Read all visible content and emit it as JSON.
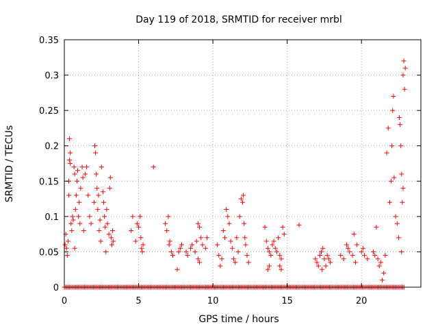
{
  "chart_data": {
    "type": "scatter",
    "title": "Day 119 of 2018, SRMTID for receiver mrbl",
    "xlabel": "GPS time / hours",
    "ylabel": "SRMTID / TECUs",
    "xlim": [
      0,
      24
    ],
    "ylim": [
      0,
      0.35
    ],
    "xticks": [
      0,
      5,
      10,
      15,
      20
    ],
    "xtick_labels": [
      "0",
      "5",
      "10",
      "15",
      "20"
    ],
    "yticks": [
      0,
      0.05,
      0.1,
      0.15,
      0.2,
      0.25,
      0.3,
      0.35
    ],
    "ytick_labels": [
      "0",
      "0.05",
      "0.1",
      "0.15",
      "0.2",
      "0.25",
      "0.3",
      "0.35"
    ],
    "grid": true,
    "marker": "+",
    "color": "#ff0000",
    "series": [
      {
        "name": "SRMTID",
        "points": [
          [
            0.05,
            0.06
          ],
          [
            0.1,
            0.075
          ],
          [
            0.15,
            0.055
          ],
          [
            0.2,
            0.045
          ],
          [
            0.25,
            0.065
          ],
          [
            0.3,
            0.13
          ],
          [
            0.3,
            0.15
          ],
          [
            0.35,
            0.21
          ],
          [
            0.35,
            0.18
          ],
          [
            0.4,
            0.175
          ],
          [
            0.4,
            0.19
          ],
          [
            0.45,
            0.09
          ],
          [
            0.5,
            0.08
          ],
          [
            0.55,
            0.1
          ],
          [
            0.6,
            0.095
          ],
          [
            0.65,
            0.17
          ],
          [
            0.7,
            0.16
          ],
          [
            0.7,
            0.055
          ],
          [
            0.75,
            0.11
          ],
          [
            0.8,
            0.13
          ],
          [
            0.85,
            0.15
          ],
          [
            0.9,
            0.165
          ],
          [
            0.95,
            0.1
          ],
          [
            1.0,
            0.12
          ],
          [
            1.05,
            0.09
          ],
          [
            1.1,
            0.14
          ],
          [
            1.2,
            0.17
          ],
          [
            1.25,
            0.155
          ],
          [
            1.3,
            0.08
          ],
          [
            1.4,
            0.16
          ],
          [
            1.5,
            0.17
          ],
          [
            1.6,
            0.13
          ],
          [
            1.7,
            0.1
          ],
          [
            1.8,
            0.09
          ],
          [
            2.0,
            0.12
          ],
          [
            2.05,
            0.2
          ],
          [
            2.1,
            0.19
          ],
          [
            2.15,
            0.16
          ],
          [
            2.2,
            0.14
          ],
          [
            2.25,
            0.11
          ],
          [
            2.3,
            0.13
          ],
          [
            2.35,
            0.08
          ],
          [
            2.4,
            0.095
          ],
          [
            2.45,
            0.065
          ],
          [
            2.5,
            0.17
          ],
          [
            2.6,
            0.135
          ],
          [
            2.65,
            0.12
          ],
          [
            2.7,
            0.1
          ],
          [
            2.75,
            0.085
          ],
          [
            2.8,
            0.05
          ],
          [
            2.85,
            0.11
          ],
          [
            2.9,
            0.09
          ],
          [
            3.0,
            0.075
          ],
          [
            3.05,
            0.14
          ],
          [
            3.1,
            0.155
          ],
          [
            3.15,
            0.07
          ],
          [
            3.2,
            0.06
          ],
          [
            3.25,
            0.08
          ],
          [
            3.3,
            0.065
          ],
          [
            4.5,
            0.08
          ],
          [
            4.6,
            0.1
          ],
          [
            4.8,
            0.065
          ],
          [
            4.9,
            0.09
          ],
          [
            5.0,
            0.085
          ],
          [
            5.1,
            0.1
          ],
          [
            5.15,
            0.07
          ],
          [
            5.2,
            0.055
          ],
          [
            5.25,
            0.05
          ],
          [
            5.3,
            0.06
          ],
          [
            6.0,
            0.17
          ],
          [
            6.8,
            0.09
          ],
          [
            6.9,
            0.08
          ],
          [
            7.0,
            0.1
          ],
          [
            7.05,
            0.06
          ],
          [
            7.1,
            0.065
          ],
          [
            7.2,
            0.05
          ],
          [
            7.3,
            0.045
          ],
          [
            7.6,
            0.025
          ],
          [
            7.7,
            0.05
          ],
          [
            7.8,
            0.055
          ],
          [
            7.9,
            0.06
          ],
          [
            8.2,
            0.05
          ],
          [
            8.3,
            0.045
          ],
          [
            8.5,
            0.055
          ],
          [
            8.6,
            0.06
          ],
          [
            8.8,
            0.05
          ],
          [
            8.9,
            0.065
          ],
          [
            9.0,
            0.09
          ],
          [
            9.1,
            0.085
          ],
          [
            9.2,
            0.07
          ],
          [
            9.3,
            0.06
          ],
          [
            9.0,
            0.04
          ],
          [
            9.1,
            0.035
          ],
          [
            9.5,
            0.055
          ],
          [
            9.6,
            0.07
          ],
          [
            10.3,
            0.06
          ],
          [
            10.4,
            0.045
          ],
          [
            10.5,
            0.03
          ],
          [
            10.6,
            0.04
          ],
          [
            10.7,
            0.08
          ],
          [
            10.8,
            0.07
          ],
          [
            10.9,
            0.11
          ],
          [
            11.0,
            0.1
          ],
          [
            11.1,
            0.09
          ],
          [
            11.2,
            0.065
          ],
          [
            11.3,
            0.055
          ],
          [
            11.4,
            0.04
          ],
          [
            11.5,
            0.035
          ],
          [
            11.6,
            0.07
          ],
          [
            11.7,
            0.05
          ],
          [
            11.8,
            0.1
          ],
          [
            11.9,
            0.125
          ],
          [
            12.0,
            0.12
          ],
          [
            12.05,
            0.13
          ],
          [
            12.1,
            0.09
          ],
          [
            12.15,
            0.07
          ],
          [
            12.2,
            0.06
          ],
          [
            12.3,
            0.045
          ],
          [
            12.4,
            0.035
          ],
          [
            13.5,
            0.085
          ],
          [
            13.6,
            0.065
          ],
          [
            13.7,
            0.055
          ],
          [
            13.8,
            0.05
          ],
          [
            13.9,
            0.045
          ],
          [
            13.7,
            0.025
          ],
          [
            13.8,
            0.03
          ],
          [
            14.0,
            0.06
          ],
          [
            14.1,
            0.065
          ],
          [
            14.2,
            0.055
          ],
          [
            14.3,
            0.05
          ],
          [
            14.4,
            0.07
          ],
          [
            14.5,
            0.045
          ],
          [
            14.6,
            0.04
          ],
          [
            14.7,
            0.085
          ],
          [
            14.8,
            0.075
          ],
          [
            14.5,
            0.03
          ],
          [
            14.6,
            0.025
          ],
          [
            15.8,
            0.088
          ],
          [
            16.9,
            0.04
          ],
          [
            17.0,
            0.035
          ],
          [
            17.1,
            0.03
          ],
          [
            17.2,
            0.045
          ],
          [
            17.3,
            0.05
          ],
          [
            17.35,
            0.025
          ],
          [
            17.4,
            0.055
          ],
          [
            17.5,
            0.04
          ],
          [
            17.6,
            0.03
          ],
          [
            17.7,
            0.045
          ],
          [
            17.8,
            0.04
          ],
          [
            17.9,
            0.035
          ],
          [
            18.6,
            0.045
          ],
          [
            18.8,
            0.04
          ],
          [
            19.0,
            0.06
          ],
          [
            19.1,
            0.055
          ],
          [
            19.2,
            0.05
          ],
          [
            19.4,
            0.045
          ],
          [
            19.5,
            0.075
          ],
          [
            19.6,
            0.035
          ],
          [
            19.7,
            0.06
          ],
          [
            20.0,
            0.05
          ],
          [
            20.1,
            0.055
          ],
          [
            20.2,
            0.045
          ],
          [
            20.4,
            0.04
          ],
          [
            20.8,
            0.05
          ],
          [
            20.9,
            0.045
          ],
          [
            21.0,
            0.085
          ],
          [
            21.1,
            0.04
          ],
          [
            21.2,
            0.03
          ],
          [
            21.3,
            0.035
          ],
          [
            21.4,
            0.01
          ],
          [
            21.5,
            0.02
          ],
          [
            21.6,
            0.045
          ],
          [
            21.7,
            0.19
          ],
          [
            21.8,
            0.225
          ],
          [
            21.9,
            0.12
          ],
          [
            22.0,
            0.15
          ],
          [
            22.05,
            0.2
          ],
          [
            22.1,
            0.25
          ],
          [
            22.15,
            0.27
          ],
          [
            22.2,
            0.155
          ],
          [
            22.3,
            0.1
          ],
          [
            22.4,
            0.09
          ],
          [
            22.5,
            0.07
          ],
          [
            22.55,
            0.24
          ],
          [
            22.6,
            0.23
          ],
          [
            22.65,
            0.2
          ],
          [
            22.7,
            0.16
          ],
          [
            22.75,
            0.12
          ],
          [
            22.8,
            0.3
          ],
          [
            22.85,
            0.32
          ],
          [
            22.9,
            0.28
          ],
          [
            22.95,
            0.31
          ],
          [
            22.7,
            0.05
          ],
          [
            22.8,
            0.14
          ]
        ]
      }
    ],
    "zero_band_xlim": [
      0,
      22.9
    ]
  }
}
